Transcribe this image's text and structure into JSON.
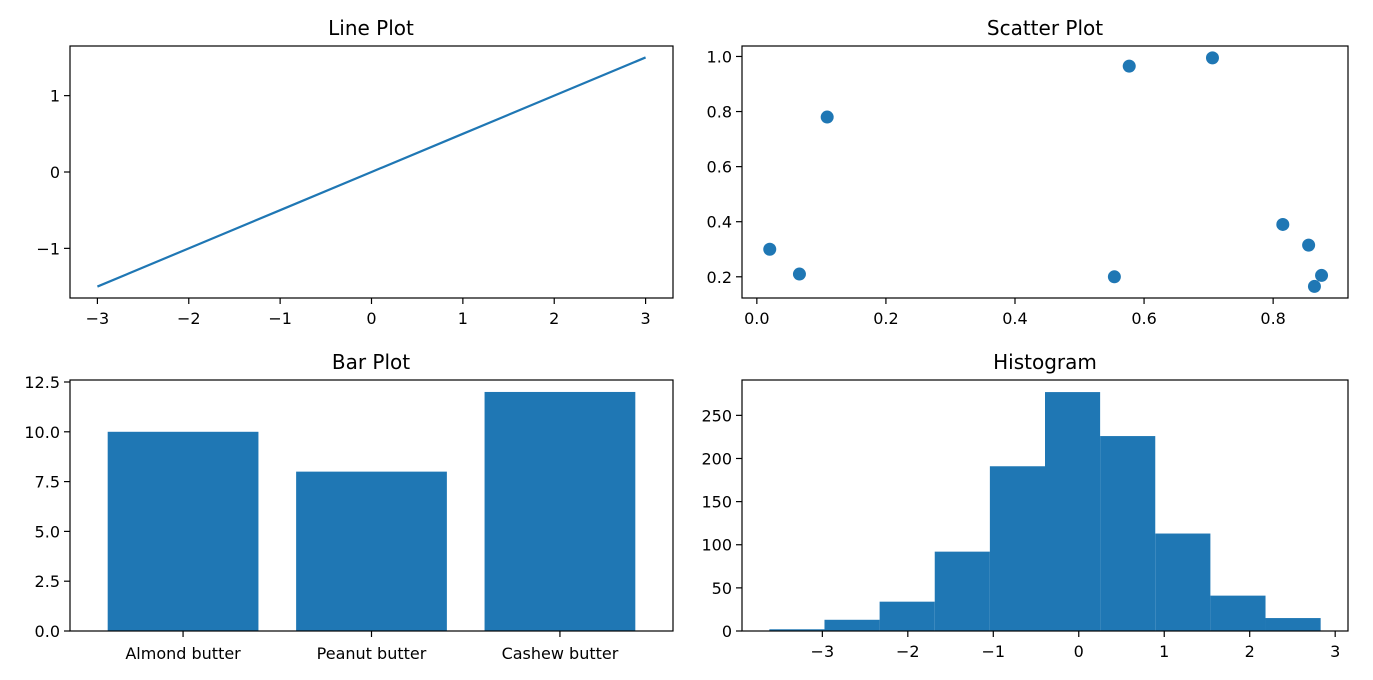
{
  "colors": {
    "series": "#1f77b4",
    "axes": "#000000",
    "background": "#ffffff"
  },
  "chart_data": [
    {
      "type": "line",
      "title": "Line Plot",
      "xlabel": "",
      "ylabel": "",
      "xlim": [
        -3.3,
        3.3
      ],
      "ylim": [
        -1.65,
        1.65
      ],
      "xticks": [
        -3,
        -2,
        -1,
        0,
        1,
        2,
        3
      ],
      "xtick_labels": [
        "−3",
        "−2",
        "−1",
        "0",
        "1",
        "2",
        "3"
      ],
      "yticks": [
        -1,
        0,
        1
      ],
      "ytick_labels": [
        "−1",
        "0",
        "1"
      ],
      "series": [
        {
          "x": [
            -3,
            -2,
            -1,
            0,
            1,
            2,
            3
          ],
          "y": [
            -1.5,
            -1.0,
            -0.5,
            0.0,
            0.5,
            1.0,
            1.5
          ]
        }
      ],
      "grid": false
    },
    {
      "type": "scatter",
      "title": "Scatter Plot",
      "xlabel": "",
      "ylabel": "",
      "xlim": [
        -0.023,
        0.916
      ],
      "ylim": [
        0.123,
        1.038
      ],
      "xticks": [
        0.0,
        0.2,
        0.4,
        0.6,
        0.8
      ],
      "xtick_labels": [
        "0.0",
        "0.2",
        "0.4",
        "0.6",
        "0.8"
      ],
      "yticks": [
        0.2,
        0.4,
        0.6,
        0.8,
        1.0
      ],
      "ytick_labels": [
        "0.2",
        "0.4",
        "0.6",
        "0.8",
        "1.0"
      ],
      "points": [
        {
          "x": 0.02,
          "y": 0.3
        },
        {
          "x": 0.066,
          "y": 0.21
        },
        {
          "x": 0.109,
          "y": 0.78
        },
        {
          "x": 0.554,
          "y": 0.2
        },
        {
          "x": 0.577,
          "y": 0.965
        },
        {
          "x": 0.706,
          "y": 0.995
        },
        {
          "x": 0.815,
          "y": 0.39
        },
        {
          "x": 0.855,
          "y": 0.315
        },
        {
          "x": 0.864,
          "y": 0.165
        },
        {
          "x": 0.875,
          "y": 0.205
        }
      ],
      "grid": false
    },
    {
      "type": "bar",
      "title": "Bar Plot",
      "xlabel": "",
      "ylabel": "",
      "categories": [
        "Almond butter",
        "Peanut butter",
        "Cashew butter"
      ],
      "values": [
        10,
        8,
        12
      ],
      "ylim": [
        0,
        12.6
      ],
      "yticks": [
        0,
        2.5,
        5,
        7.5,
        10,
        12.5
      ],
      "ytick_labels": [
        "0.0",
        "2.5",
        "5.0",
        "7.5",
        "10.0",
        "12.5"
      ],
      "grid": false
    },
    {
      "type": "bar",
      "subtype": "histogram",
      "title": "Histogram",
      "xlabel": "",
      "ylabel": "",
      "bin_edges": [
        -3.62,
        -2.975,
        -2.33,
        -1.685,
        -1.04,
        -0.395,
        0.25,
        0.895,
        1.54,
        2.185,
        2.83
      ],
      "counts": [
        2,
        13,
        34,
        92,
        191,
        277,
        226,
        113,
        41,
        15
      ],
      "xlim": [
        -3.94,
        3.15
      ],
      "ylim": [
        0,
        291
      ],
      "xticks": [
        -3,
        -2,
        -1,
        0,
        1,
        2,
        3
      ],
      "xtick_labels": [
        "−3",
        "−2",
        "−1",
        "0",
        "1",
        "2",
        "3"
      ],
      "yticks": [
        0,
        50,
        100,
        150,
        200,
        250
      ],
      "ytick_labels": [
        "0",
        "50",
        "100",
        "150",
        "200",
        "250"
      ],
      "grid": false
    }
  ]
}
